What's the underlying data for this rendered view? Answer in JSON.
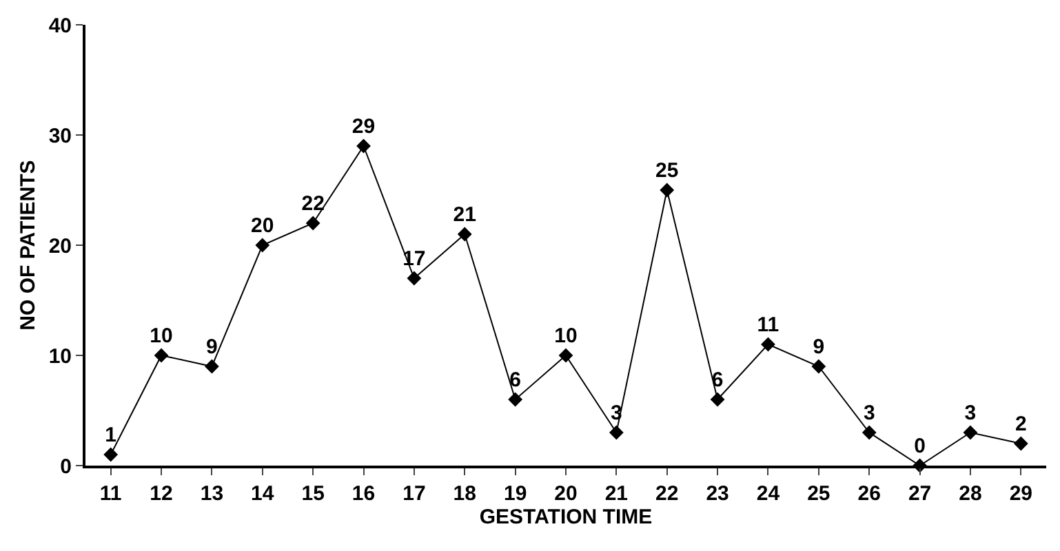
{
  "chart_data": {
    "type": "line",
    "xlabel": "GESTATION TIME",
    "ylabel": "NO OF PATIENTS",
    "categories": [
      "11",
      "12",
      "13",
      "14",
      "15",
      "16",
      "17",
      "18",
      "19",
      "20",
      "21",
      "22",
      "23",
      "24",
      "25",
      "26",
      "27",
      "28",
      "29"
    ],
    "series": [
      {
        "color": "#000000",
        "values": [
          1,
          10,
          9,
          20,
          22,
          29,
          17,
          21,
          6,
          10,
          3,
          25,
          6,
          11,
          9,
          3,
          0,
          3,
          2
        ]
      }
    ],
    "ylim": [
      0,
      40
    ],
    "yticks": [
      0,
      10,
      20,
      30,
      40
    ],
    "marker": "diamond",
    "line_style": "solid",
    "data_labels": true
  }
}
